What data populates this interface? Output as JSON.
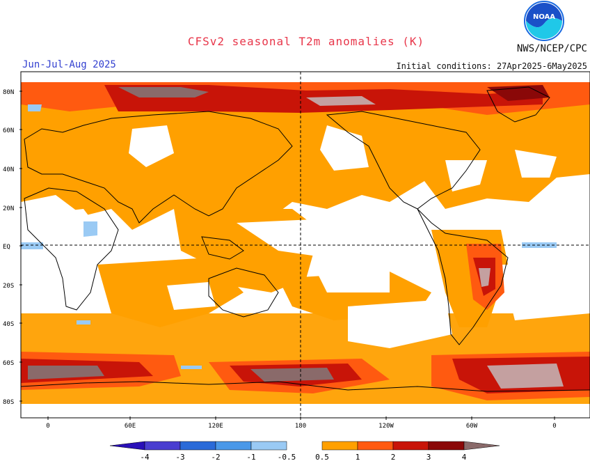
{
  "header": {
    "title": "CFSv2 seasonal T2m anomalies (K)",
    "org": "NWS/NCEP/CPC",
    "season": "Jun-Jul-Aug 2025",
    "initial_conditions": "Initial conditions: 27Apr2025-6May2025",
    "logo_text": "NOAA"
  },
  "axes": {
    "lat_labels": [
      "80N",
      "60N",
      "40N",
      "20N",
      "EQ",
      "20S",
      "40S",
      "60S",
      "80S"
    ],
    "lon_labels": [
      "0",
      "60E",
      "120E",
      "180",
      "120W",
      "60W",
      "0"
    ]
  },
  "colorbar": {
    "labels": [
      "-4",
      "-3",
      "-2",
      "-1",
      "-0.5",
      "0.5",
      "1",
      "2",
      "3",
      "4"
    ],
    "colors": {
      "neg": [
        "#2a10b8",
        "#4a3ed0",
        "#2a6ad8",
        "#4a98e8",
        "#9acaf4"
      ],
      "pos": [
        "#ffa000",
        "#ff5a10",
        "#c81408",
        "#8a0808",
        "#c4a0a0",
        "#8a6a6a"
      ]
    }
  }
}
